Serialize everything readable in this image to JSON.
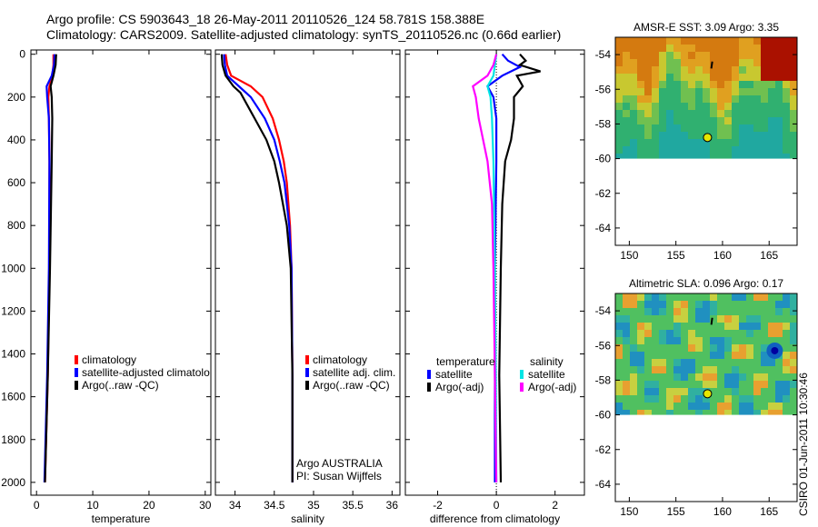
{
  "title": {
    "line1": "Argo profile: CS 5903643_18 26-May-2011 20110526_124 58.781S 158.388E",
    "line2": "Climatology: CARS2009. Satellite-adjusted climatology: synTS_20110526.nc (0.66d earlier)"
  },
  "side_stamp": "CSIRO 01-Jun-2011 10:30:46",
  "colors": {
    "climatology": "#ff0000",
    "satellite": "#0000ff",
    "argo": "#000000",
    "salinity_satellite": "#00e5e5",
    "salinity_argo": "#ff00ff"
  },
  "chart_data": [
    {
      "type": "line",
      "name": "temperature-profile",
      "xlabel": "temperature",
      "ylabel": "",
      "xlim": [
        -1,
        31
      ],
      "ylim": [
        2060,
        -20
      ],
      "y_reversed": true,
      "xticks": [
        0,
        10,
        20,
        30
      ],
      "xtick_labels": [
        "0",
        "10",
        "20",
        "30"
      ],
      "yticks": [
        0,
        200,
        400,
        600,
        800,
        1000,
        1200,
        1400,
        1600,
        1800,
        2000
      ],
      "ytick_labels": [
        "0",
        "200",
        "400",
        "600",
        "800",
        "1000",
        "1200",
        "1400",
        "1600",
        "1800",
        "2000"
      ],
      "legend": [
        "climatology",
        "satellite-adjusted climatolo",
        "Argo(..raw -QC)"
      ],
      "legend_position": "lower-middle",
      "series": [
        {
          "name": "climatology",
          "color": "#ff0000",
          "depth": [
            0,
            50,
            100,
            150,
            200,
            300,
            500,
            1000,
            1500,
            2000
          ],
          "values": [
            3.0,
            3.0,
            2.8,
            2.3,
            2.1,
            2.2,
            2.3,
            2.3,
            2.0,
            1.5
          ]
        },
        {
          "name": "satellite-adjusted climatolo",
          "color": "#0000ff",
          "depth": [
            0,
            50,
            100,
            150,
            200,
            300,
            500,
            1000,
            1500,
            2000
          ],
          "values": [
            3.2,
            3.1,
            2.7,
            1.8,
            1.9,
            2.2,
            2.3,
            2.2,
            1.9,
            1.4
          ]
        },
        {
          "name": "Argo(..raw -QC)",
          "color": "#000000",
          "depth": [
            0,
            50,
            100,
            150,
            200,
            300,
            500,
            1000,
            1500,
            2000
          ],
          "values": [
            3.5,
            3.4,
            3.0,
            2.5,
            2.7,
            2.8,
            2.7,
            2.4,
            2.0,
            1.5
          ]
        }
      ]
    },
    {
      "type": "line",
      "name": "salinity-profile",
      "xlabel": "salinity",
      "ylabel": "",
      "xlim": [
        33.75,
        36.1
      ],
      "ylim": [
        2060,
        -20
      ],
      "y_reversed": true,
      "xticks": [
        34,
        34.5,
        35,
        35.5,
        36
      ],
      "xtick_labels": [
        "34",
        "34.5",
        "35",
        "35.5",
        "36"
      ],
      "legend": [
        "climatology",
        "satellite adj. clim.",
        "Argo(..raw -QC)"
      ],
      "legend_position": "lower-right",
      "annotation": [
        "Argo AUSTRALIA",
        "PI: Susan Wijffels"
      ],
      "series": [
        {
          "name": "climatology",
          "color": "#ff0000",
          "depth": [
            0,
            50,
            100,
            150,
            200,
            300,
            400,
            500,
            600,
            800,
            1000,
            1500,
            2000
          ],
          "values": [
            33.88,
            33.9,
            33.95,
            34.2,
            34.35,
            34.48,
            34.56,
            34.62,
            34.66,
            34.7,
            34.72,
            34.73,
            34.73
          ]
        },
        {
          "name": "satellite adj. clim.",
          "color": "#0000ff",
          "depth": [
            0,
            50,
            100,
            150,
            200,
            300,
            400,
            500,
            600,
            800,
            1000,
            1500,
            2000
          ],
          "values": [
            33.86,
            33.87,
            33.9,
            34.05,
            34.2,
            34.38,
            34.5,
            34.57,
            34.63,
            34.69,
            34.72,
            34.73,
            34.73
          ]
        },
        {
          "name": "Argo(..raw -QC)",
          "color": "#000000",
          "depth": [
            0,
            50,
            100,
            150,
            180,
            300,
            400,
            500,
            600,
            800,
            1000,
            1500,
            2000
          ],
          "values": [
            33.83,
            33.84,
            33.88,
            33.98,
            34.07,
            34.25,
            34.4,
            34.5,
            34.56,
            34.66,
            34.71,
            34.73,
            34.73
          ]
        }
      ]
    },
    {
      "type": "line",
      "name": "difference-profile",
      "xlabel": "difference from climatology",
      "ylabel": "",
      "xlim": [
        -3.1,
        3.0
      ],
      "ylim": [
        2060,
        -20
      ],
      "y_reversed": true,
      "xticks": [
        -2,
        0,
        2
      ],
      "xtick_labels": [
        "-2",
        "0",
        "2"
      ],
      "legend_groups": [
        {
          "title": "temperature",
          "items": [
            "satellite",
            "Argo(-adj)"
          ]
        },
        {
          "title": "salinity",
          "items": [
            "satellite",
            "Argo(-adj)"
          ]
        }
      ],
      "legend_position": "lower-middle",
      "series": [
        {
          "name": "temperature satellite",
          "color": "#0000ff",
          "depth": [
            0,
            30,
            60,
            100,
            150,
            200,
            300,
            500,
            1000,
            2000
          ],
          "values": [
            0.2,
            0.4,
            0.8,
            0.2,
            -0.3,
            -0.1,
            0.0,
            0.0,
            -0.05,
            -0.05
          ]
        },
        {
          "name": "temperature Argo(-adj)",
          "color": "#000000",
          "depth": [
            0,
            30,
            50,
            80,
            100,
            150,
            200,
            300,
            400,
            500,
            700,
            1000,
            1500,
            2000
          ],
          "values": [
            0.8,
            1.0,
            0.8,
            1.5,
            0.7,
            0.9,
            0.6,
            0.6,
            0.5,
            0.3,
            0.2,
            0.15,
            0.1,
            0.15
          ]
        },
        {
          "name": "salinity satellite",
          "color": "#00e5e5",
          "depth": [
            0,
            50,
            100,
            150,
            200,
            300,
            500,
            1000,
            1500,
            2000
          ],
          "values": [
            0.0,
            -0.05,
            -0.1,
            -0.3,
            -0.2,
            -0.15,
            -0.1,
            -0.05,
            -0.02,
            0.0
          ]
        },
        {
          "name": "salinity Argo(-adj)",
          "color": "#ff00ff",
          "depth": [
            0,
            50,
            100,
            150,
            200,
            300,
            500,
            700,
            1000,
            1500,
            2000
          ],
          "values": [
            0.0,
            -0.1,
            -0.3,
            -0.8,
            -0.7,
            -0.6,
            -0.3,
            -0.15,
            -0.1,
            -0.05,
            0.0
          ]
        }
      ]
    },
    {
      "type": "heatmap",
      "name": "sst-map",
      "title": "AMSR-E SST: 3.09 Argo: 3.35",
      "xlim": [
        148.5,
        168
      ],
      "ylim": [
        -65,
        -53
      ],
      "xticks": [
        150,
        155,
        160,
        165
      ],
      "yticks": [
        -54,
        -56,
        -58,
        -60,
        -62,
        -64
      ],
      "data_lat_range": [
        -60,
        -53
      ],
      "float_position": {
        "lon": 158.388,
        "lat": -58.781
      }
    },
    {
      "type": "heatmap",
      "name": "sla-map",
      "title": "Altimetric SLA: 0.096 Argo: 0.17",
      "xlim": [
        148.5,
        168
      ],
      "ylim": [
        -65,
        -53
      ],
      "xticks": [
        150,
        155,
        160,
        165
      ],
      "yticks": [
        -54,
        -56,
        -58,
        -60,
        -62,
        -64
      ],
      "data_lat_range": [
        -60,
        -53
      ],
      "float_position": {
        "lon": 158.388,
        "lat": -58.781
      }
    }
  ]
}
